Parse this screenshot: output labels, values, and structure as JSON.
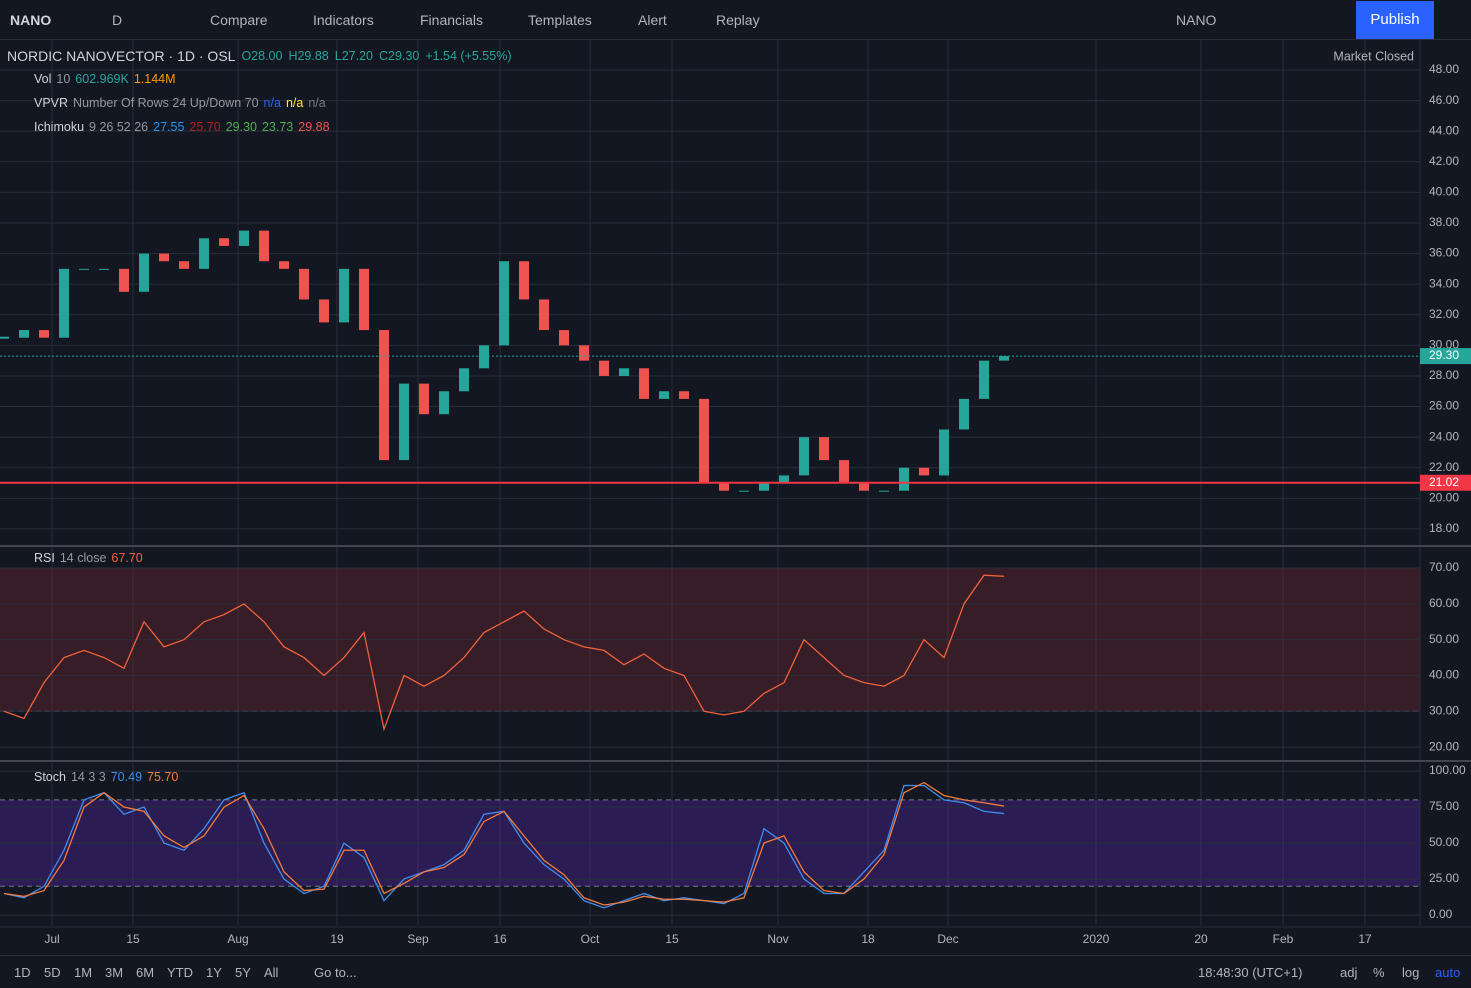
{
  "toolbar": {
    "symbol": "NANO",
    "interval": "D",
    "items": [
      "Compare",
      "Indicators",
      "Financials",
      "Templates",
      "Alert",
      "Replay"
    ],
    "layout": "NANO",
    "publish": "Publish"
  },
  "legend": {
    "title": "NORDIC NANOVECTOR · 1D · OSL",
    "ohlc": [
      "O28.00",
      "H29.88",
      "L27.20",
      "C29.30",
      "+1.54 (+5.55%)"
    ],
    "status": "Market Closed"
  },
  "indicators": [
    {
      "name": "Vol",
      "params": "10",
      "values": [
        "602.969K",
        "1.144M"
      ]
    },
    {
      "name": "VPVR",
      "params": "Number Of Rows 24 Up/Down 70",
      "values": [
        "n/a",
        "n/a",
        "n/a"
      ]
    },
    {
      "name": "Ichimoku",
      "params": "9 26 52 26",
      "values": [
        "27.55",
        "25.70",
        "29.30",
        "23.73",
        "29.88"
      ]
    },
    {
      "name": "RSI",
      "params": "14 close",
      "values": [
        "67.70"
      ]
    },
    {
      "name": "Stoch",
      "params": "14 3 3",
      "values": [
        "70.49",
        "75.70"
      ]
    }
  ],
  "chart_data": [
    {
      "type": "candle",
      "values": [
        30.5,
        31,
        30.5,
        35,
        35,
        35,
        33.5,
        36,
        35.5,
        35,
        37,
        36.5,
        37.5,
        35.5,
        35,
        33,
        31.5,
        35,
        31,
        22.5,
        27.5,
        25.5,
        27,
        28.5,
        30,
        35.5,
        33,
        31,
        30,
        29,
        28,
        28.5,
        26.5,
        27,
        26.5,
        21,
        20.5,
        20.5,
        21,
        21.5,
        24,
        22.5,
        21,
        20.5,
        20.5,
        22,
        21.5,
        24.5,
        26.5,
        29,
        29.3
      ],
      "up_color": "#26a69a",
      "down_color": "#ef5350",
      "ylim": [
        16.95,
        49.96
      ],
      "yticks": [
        {
          "value": 18,
          "label": "18.00"
        },
        {
          "value": 20,
          "label": "20.00"
        },
        {
          "value": 22,
          "label": "22.00"
        },
        {
          "value": 24,
          "label": "24.00"
        },
        {
          "value": 26,
          "label": "26.00"
        },
        {
          "value": 28,
          "label": "28.00"
        },
        {
          "value": 30,
          "label": "30.00"
        },
        {
          "value": 32,
          "label": "32.00"
        },
        {
          "value": 34,
          "label": "34.00"
        },
        {
          "value": 36,
          "label": "36.00"
        },
        {
          "value": 38,
          "label": "38.00"
        },
        {
          "value": 40,
          "label": "40.00"
        },
        {
          "value": 42,
          "label": "42.00"
        },
        {
          "value": 44,
          "label": "44.00"
        },
        {
          "value": 46,
          "label": "46.00"
        },
        {
          "value": 48,
          "label": "48.00"
        }
      ],
      "price_lines": [
        {
          "value": 21.02,
          "color": "#f23645"
        },
        {
          "value": 29.3,
          "label": "29.30",
          "color": "#26a69a"
        }
      ]
    },
    {
      "type": "line",
      "series": [
        {
          "color": "#f0613b",
          "values": [
            30,
            28,
            38,
            45,
            47,
            45,
            42,
            55,
            48,
            50,
            55,
            57,
            60,
            55,
            48,
            45,
            40,
            45,
            52,
            25,
            40,
            37,
            40,
            45,
            52,
            55,
            58,
            53,
            50,
            48,
            47,
            43,
            46,
            42,
            40,
            30,
            29,
            30,
            35,
            38,
            50,
            45,
            40,
            38,
            37,
            40,
            50,
            45,
            60,
            68,
            67.7
          ]
        }
      ],
      "ylim": [
        16.4,
        75.6
      ],
      "yticks": [
        {
          "value": 20,
          "label": "20.00"
        },
        {
          "value": 30,
          "label": "30.00"
        },
        {
          "value": 40,
          "label": "40.00"
        },
        {
          "value": 50,
          "label": "50.00"
        },
        {
          "value": 60,
          "label": "60.00"
        },
        {
          "value": 70,
          "label": "70.00"
        }
      ],
      "bands": [
        30,
        70
      ],
      "band_color": "rgba(120,40,50,0.35)"
    },
    {
      "type": "line",
      "series": [
        {
          "color": "#3d8ef0",
          "values": [
            15,
            12,
            20,
            45,
            80,
            85,
            70,
            75,
            50,
            45,
            60,
            80,
            85,
            50,
            25,
            15,
            20,
            50,
            40,
            10,
            25,
            30,
            35,
            45,
            70,
            72,
            50,
            35,
            25,
            10,
            5,
            10,
            15,
            10,
            12,
            10,
            8,
            15,
            60,
            50,
            25,
            15,
            15,
            30,
            45,
            90,
            90,
            80,
            78,
            72,
            70.49
          ]
        },
        {
          "color": "#f57c3a",
          "values": [
            15,
            13,
            17,
            38,
            75,
            85,
            75,
            72,
            55,
            47,
            55,
            75,
            83,
            60,
            30,
            17,
            18,
            45,
            45,
            15,
            22,
            30,
            33,
            42,
            65,
            72,
            55,
            38,
            28,
            12,
            7,
            9,
            13,
            11,
            11,
            10,
            9,
            12,
            50,
            55,
            30,
            17,
            15,
            25,
            42,
            85,
            92,
            83,
            80,
            78,
            75.7
          ]
        }
      ],
      "ylim": [
        -6.9,
        105.6
      ],
      "yticks": [
        {
          "value": 0,
          "label": "0.00"
        },
        {
          "value": 25,
          "label": "25.00"
        },
        {
          "value": 50,
          "label": "50.00"
        },
        {
          "value": 75,
          "label": "75.00"
        },
        {
          "value": 100,
          "label": "100.00"
        }
      ],
      "bands": [
        20,
        80
      ],
      "band_color": "rgba(100,40,200,0.3)"
    }
  ],
  "x_labels": [
    "Jul",
    "15",
    "Aug",
    "19",
    "Sep",
    "16",
    "Oct",
    "15",
    "Nov",
    "18",
    "Dec",
    "2020",
    "20",
    "Feb",
    "17"
  ],
  "bottom_bar": {
    "ranges": [
      "1D",
      "5D",
      "1M",
      "3M",
      "6M",
      "YTD",
      "1Y",
      "5Y",
      "All"
    ],
    "goto": "Go to...",
    "time": "18:48:30 (UTC+1)",
    "options": [
      "adj",
      "%",
      "log",
      "auto"
    ]
  }
}
